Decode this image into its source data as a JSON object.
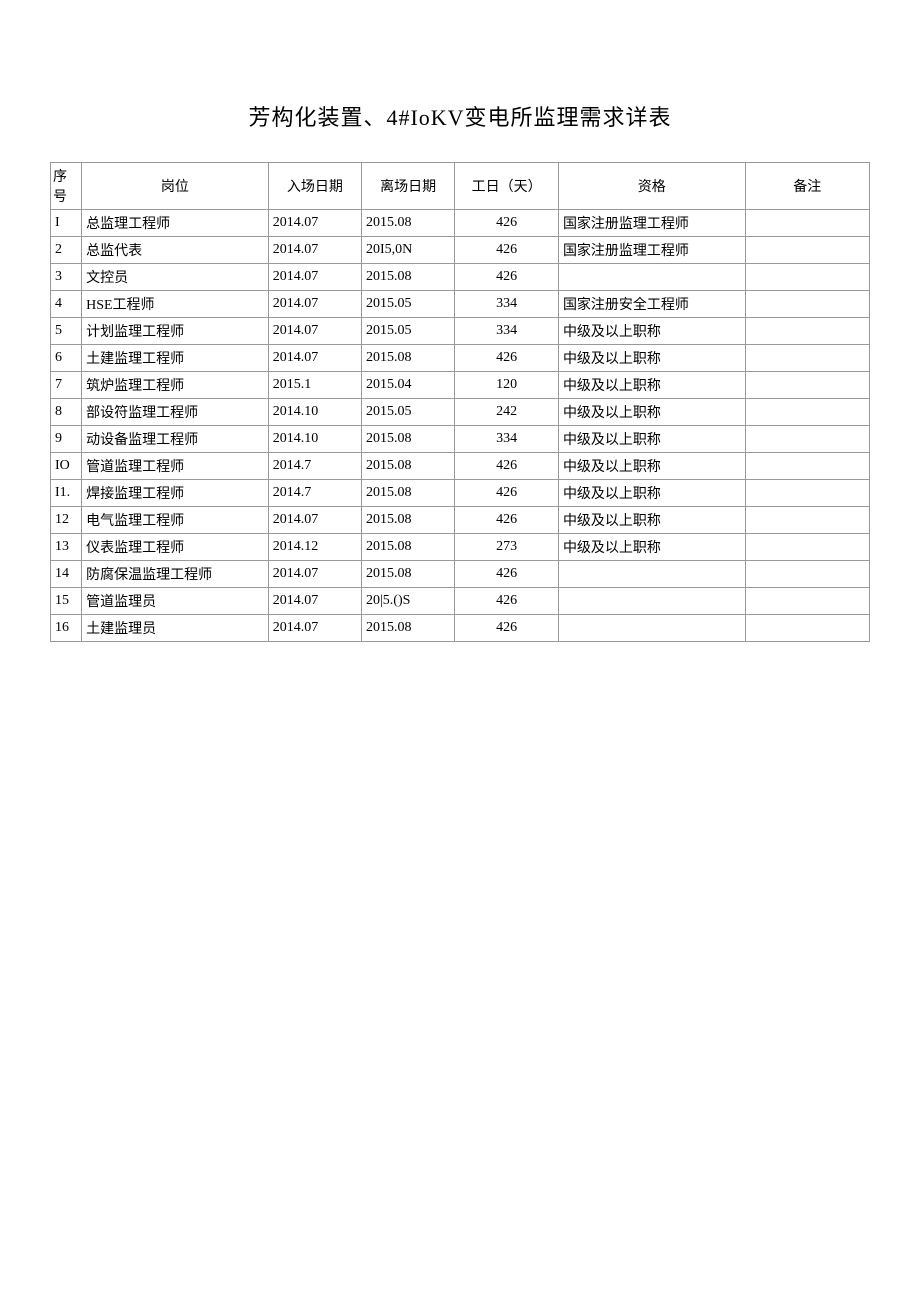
{
  "title": "芳构化装置、4#IoKV变电所监理需求详表",
  "table": {
    "headers": {
      "seq": "序号",
      "position": "岗位",
      "start_date": "入场日期",
      "end_date": "离场日期",
      "days": "工日（天）",
      "qualification": "资格",
      "remark": "备注"
    },
    "rows": [
      {
        "seq": "I",
        "position": "总监理工程师",
        "start_date": "2014.07",
        "end_date": "2015.08",
        "days": "426",
        "qualification": "国家注册监理工程师",
        "remark": ""
      },
      {
        "seq": "2",
        "position": "总监代表",
        "start_date": "2014.07",
        "end_date": "20I5,0N",
        "days": "426",
        "qualification": "国家注册监理工程师",
        "remark": ""
      },
      {
        "seq": "3",
        "position": "文控员",
        "start_date": "2014.07",
        "end_date": "2015.08",
        "days": "426",
        "qualification": "",
        "remark": ""
      },
      {
        "seq": "4",
        "position": "HSE工程师",
        "start_date": "2014.07",
        "end_date": "2015.05",
        "days": "334",
        "qualification": "国家注册安全工程师",
        "remark": ""
      },
      {
        "seq": "5",
        "position": "计划监理工程师",
        "start_date": "2014.07",
        "end_date": "2015.05",
        "days": "334",
        "qualification": "中级及以上职称",
        "remark": ""
      },
      {
        "seq": "6",
        "position": "土建监理工程师",
        "start_date": "2014.07",
        "end_date": "2015.08",
        "days": "426",
        "qualification": "中级及以上职称",
        "remark": ""
      },
      {
        "seq": "7",
        "position": "筑炉监理工程师",
        "start_date": "2015.1",
        "end_date": "2015.04",
        "days": "120",
        "qualification": "中级及以上职称",
        "remark": ""
      },
      {
        "seq": "8",
        "position": "部设符监理工程师",
        "start_date": "2014.10",
        "end_date": "2015.05",
        "days": "242",
        "qualification": "中级及以上职称",
        "remark": ""
      },
      {
        "seq": "9",
        "position": "动设备监理工程师",
        "start_date": "2014.10",
        "end_date": "2015.08",
        "days": "334",
        "qualification": "中级及以上职称",
        "remark": ""
      },
      {
        "seq": "IO",
        "position": "管道监理工程师",
        "start_date": "2014.7",
        "end_date": "2015.08",
        "days": "426",
        "qualification": "中级及以上职称",
        "remark": ""
      },
      {
        "seq": "I1.",
        "position": "焊接监理工程师",
        "start_date": "2014.7",
        "end_date": "2015.08",
        "days": "426",
        "qualification": "中级及以上职称",
        "remark": ""
      },
      {
        "seq": "12",
        "position": "电气监理工程师",
        "start_date": "2014.07",
        "end_date": "2015.08",
        "days": "426",
        "qualification": "中级及以上职称",
        "remark": ""
      },
      {
        "seq": "13",
        "position": "仪表监理工程师",
        "start_date": "2014.12",
        "end_date": "2015.08",
        "days": "273",
        "qualification": "中级及以上职称",
        "remark": ""
      },
      {
        "seq": "14",
        "position": "防腐保温监理工程师",
        "start_date": "2014.07",
        "end_date": "2015.08",
        "days": "426",
        "qualification": "",
        "remark": ""
      },
      {
        "seq": "15",
        "position": "管道监理员",
        "start_date": "2014.07",
        "end_date": "20|5.()S",
        "days": "426",
        "qualification": "",
        "remark": ""
      },
      {
        "seq": "16",
        "position": "土建监理员",
        "start_date": "2014.07",
        "end_date": "2015.08",
        "days": "426",
        "qualification": "",
        "remark": ""
      }
    ]
  },
  "styling": {
    "background_color": "#ffffff",
    "border_color": "#999999",
    "title_fontsize": 22,
    "cell_fontsize": 14,
    "font_family": "SimSun"
  }
}
